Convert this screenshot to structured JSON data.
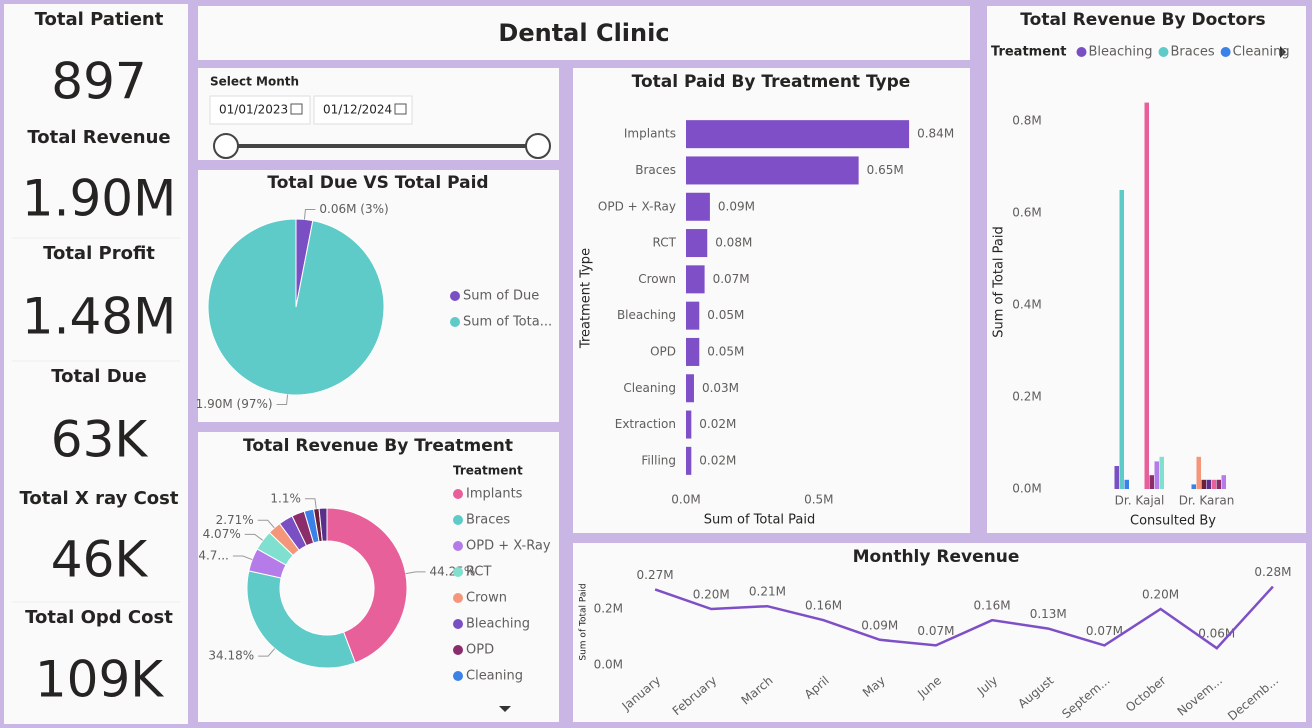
{
  "header": {
    "title": "Dental Clinic"
  },
  "kpis": [
    {
      "label": "Total Patient",
      "value": "897"
    },
    {
      "label": "Total Revenue",
      "value": "1.90M"
    },
    {
      "label": "Total Profit",
      "value": "1.48M"
    },
    {
      "label": "Total Due",
      "value": "63K"
    },
    {
      "label": "Total X ray Cost",
      "value": "46K"
    },
    {
      "label": "Total Opd Cost",
      "value": "109K"
    }
  ],
  "filter": {
    "label": "Select Month",
    "start": "01/01/2023",
    "end": "01/12/2024"
  },
  "chart_data": [
    {
      "type": "pie",
      "title": "Total Due VS Total Paid",
      "categories": [
        "Sum of Due",
        "Sum of Tota..."
      ],
      "values": [
        0.06,
        1.9
      ],
      "value_labels": [
        "0.06M (3%)",
        "1.90M (97%)"
      ],
      "colors": [
        "#7b4fc4",
        "#5ecbc8"
      ]
    },
    {
      "type": "donut",
      "title": "Total Revenue By Treatment",
      "legend_title": "Treatment",
      "categories": [
        "Implants",
        "Braces",
        "OPD + X-Ray",
        "RCT",
        "Crown",
        "Bleaching",
        "OPD",
        "Cleaning",
        null,
        null
      ],
      "values": [
        44.25,
        34.18,
        4.7,
        4.07,
        2.71,
        2.9,
        2.6,
        1.9,
        1.1,
        1.59
      ],
      "value_labels": [
        "44.25%",
        "34.18%",
        "4.7...",
        "4.07%",
        "2.71%",
        null,
        null,
        null,
        "1.1%",
        null
      ],
      "colors": [
        "#e8609a",
        "#5ecbc8",
        "#b57be8",
        "#7fe0cf",
        "#f4967a",
        "#7b4fc4",
        "#8b2d6b",
        "#3b82e8",
        "#6b1f3a",
        "#5a2f8a"
      ]
    },
    {
      "type": "bar",
      "orientation": "horizontal",
      "title": "Total Paid By Treatment Type",
      "x_label": "Sum of Total Paid",
      "y_label": "Treatment Type",
      "categories": [
        "Implants",
        "Braces",
        "OPD + X-Ray",
        "RCT",
        "Crown",
        "Bleaching",
        "OPD",
        "Cleaning",
        "Extraction",
        "Filling"
      ],
      "values": [
        0.84,
        0.65,
        0.09,
        0.08,
        0.07,
        0.05,
        0.05,
        0.03,
        0.02,
        0.02
      ],
      "value_labels": [
        "0.84M",
        "0.65M",
        "0.09M",
        "0.08M",
        "0.07M",
        "0.05M",
        "0.05M",
        "0.03M",
        "0.02M",
        "0.02M"
      ],
      "color": "#7e4fc6",
      "xlim": [
        0,
        0.93
      ],
      "xticks": [
        {
          "value": 0,
          "label": "0.0M"
        },
        {
          "value": 0.5,
          "label": "0.5M"
        }
      ]
    },
    {
      "type": "bar",
      "orientation": "vertical",
      "title": "Total Revenue By Doctors",
      "legend_title": "Treatment",
      "x_label": "Consulted By",
      "y_label": "Sum of Total Paid",
      "categories": [
        "Dr. Kajal",
        "Dr. Karan"
      ],
      "series": [
        {
          "name": "Bleaching",
          "color": "#7b4fc4",
          "values": [
            0.05,
            0
          ]
        },
        {
          "name": "Braces",
          "color": "#5ecbc8",
          "values": [
            0.65,
            0
          ]
        },
        {
          "name": "Cleaning",
          "color": "#3b82e8",
          "values": [
            0.02,
            0.01
          ]
        },
        {
          "name": null,
          "color": "#f4967a",
          "values": [
            0,
            0.07
          ]
        },
        {
          "name": null,
          "color": "#6b1f3a",
          "values": [
            0,
            0.02
          ]
        },
        {
          "name": null,
          "color": "#5a2f8a",
          "values": [
            0,
            0.02
          ]
        },
        {
          "name": null,
          "color": "#e8609a",
          "values": [
            0.84,
            0.02
          ]
        },
        {
          "name": null,
          "color": "#8b2d6b",
          "values": [
            0.03,
            0.02
          ]
        },
        {
          "name": null,
          "color": "#b57be8",
          "values": [
            0.06,
            0.03
          ]
        },
        {
          "name": null,
          "color": "#7fe0cf",
          "values": [
            0.07,
            0
          ]
        }
      ],
      "ylim": [
        0,
        0.85
      ],
      "yticks": [
        {
          "value": 0,
          "label": "0.0M"
        },
        {
          "value": 0.2,
          "label": "0.2M"
        },
        {
          "value": 0.4,
          "label": "0.4M"
        },
        {
          "value": 0.6,
          "label": "0.6M"
        },
        {
          "value": 0.8,
          "label": "0.8M"
        }
      ]
    },
    {
      "type": "line",
      "title": "Monthly Revenue",
      "y_label": "Sum of Total Paid",
      "categories": [
        "January",
        "February",
        "March",
        "April",
        "May",
        "June",
        "July",
        "August",
        "Septem...",
        "October",
        "Novem...",
        "Decemb..."
      ],
      "values": [
        0.27,
        0.2,
        0.21,
        0.16,
        0.09,
        0.07,
        0.16,
        0.13,
        0.07,
        0.2,
        0.06,
        0.28
      ],
      "value_labels": [
        "0.27M",
        "0.20M",
        "0.21M",
        "0.16M",
        "0.09M",
        "0.07M",
        "0.16M",
        "0.13M",
        "0.07M",
        "0.20M",
        "0.06M",
        "0.28M"
      ],
      "color": "#7e4fc6",
      "ylim": [
        0,
        0.3
      ],
      "yticks": [
        {
          "value": 0,
          "label": "0.0M"
        },
        {
          "value": 0.2,
          "label": "0.2M"
        }
      ]
    }
  ]
}
